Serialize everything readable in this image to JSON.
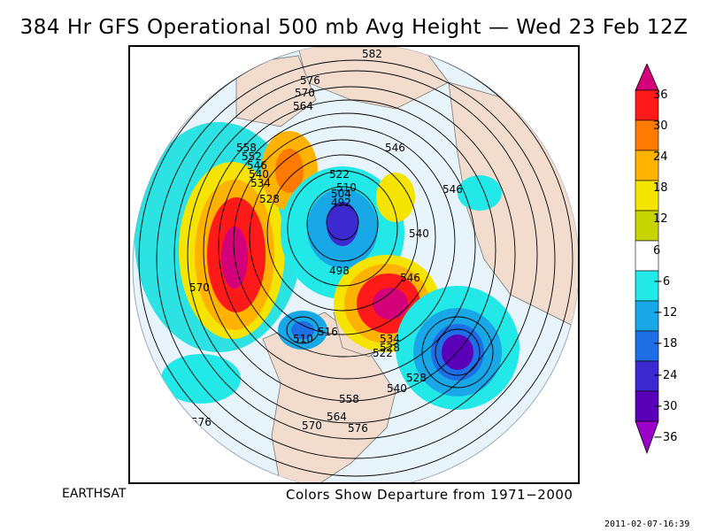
{
  "title": "384 Hr GFS Operational 500 mb Avg Height — Wed 23 Feb 12Z",
  "footer": {
    "source": "EARTHSAT",
    "note": "Colors Show Departure from 1971−2000",
    "timestamp": "2011-02-07-16:39"
  },
  "colorbar": {
    "labels": [
      "36",
      "30",
      "24",
      "18",
      "12",
      "6",
      "−6",
      "−12",
      "−18",
      "−24",
      "−30",
      "−36"
    ],
    "colors": [
      "#d4007a",
      "#ff1a1a",
      "#ff7a00",
      "#ffb300",
      "#f5e400",
      "#c8d400",
      "#ffffff",
      "#22e8e8",
      "#18a8e8",
      "#1e6ee6",
      "#3c2ad0",
      "#5a00b8",
      "#9a00c8"
    ]
  },
  "map": {
    "contour_labels": [
      "582",
      "576",
      "570",
      "564",
      "558",
      "552",
      "546",
      "540",
      "534",
      "528",
      "522",
      "510",
      "504",
      "492",
      "546",
      "540",
      "546",
      "498",
      "570",
      "546",
      "534",
      "528",
      "522",
      "516",
      "510",
      "540",
      "528",
      "558",
      "564",
      "570",
      "576",
      "576"
    ]
  }
}
